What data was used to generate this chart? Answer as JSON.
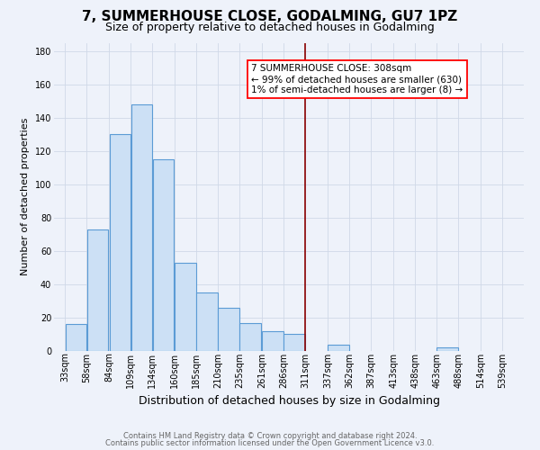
{
  "title": "7, SUMMERHOUSE CLOSE, GODALMING, GU7 1PZ",
  "subtitle": "Size of property relative to detached houses in Godalming",
  "xlabel": "Distribution of detached houses by size in Godalming",
  "ylabel": "Number of detached properties",
  "bar_left_edges": [
    33,
    58,
    84,
    109,
    134,
    160,
    185,
    210,
    235,
    261,
    286,
    311,
    337,
    362,
    387,
    413,
    438,
    463,
    488,
    514
  ],
  "bar_heights": [
    16,
    73,
    130,
    148,
    115,
    53,
    35,
    26,
    17,
    12,
    10,
    0,
    4,
    0,
    0,
    0,
    0,
    2,
    0,
    0
  ],
  "bin_width": 25,
  "bar_facecolor": "#cce0f5",
  "bar_edgecolor": "#5b9bd5",
  "reference_line_x": 311,
  "reference_line_color": "#8b0000",
  "ylim": [
    0,
    185
  ],
  "yticks": [
    0,
    20,
    40,
    60,
    80,
    100,
    120,
    140,
    160,
    180
  ],
  "xtick_labels": [
    "33sqm",
    "58sqm",
    "84sqm",
    "109sqm",
    "134sqm",
    "160sqm",
    "185sqm",
    "210sqm",
    "235sqm",
    "261sqm",
    "286sqm",
    "311sqm",
    "337sqm",
    "362sqm",
    "387sqm",
    "413sqm",
    "438sqm",
    "463sqm",
    "488sqm",
    "514sqm",
    "539sqm"
  ],
  "xtick_positions": [
    33,
    58,
    84,
    109,
    134,
    160,
    185,
    210,
    235,
    261,
    286,
    311,
    337,
    362,
    387,
    413,
    438,
    463,
    488,
    514,
    539
  ],
  "annotation_title": "7 SUMMERHOUSE CLOSE: 308sqm",
  "annotation_line1": "← 99% of detached houses are smaller (630)",
  "annotation_line2": "1% of semi-detached houses are larger (8) →",
  "grid_color": "#d0d8e8",
  "bg_color": "#eef2fa",
  "footer_line1": "Contains HM Land Registry data © Crown copyright and database right 2024.",
  "footer_line2": "Contains public sector information licensed under the Open Government Licence v3.0.",
  "title_fontsize": 11,
  "subtitle_fontsize": 9,
  "xlabel_fontsize": 9,
  "ylabel_fontsize": 8,
  "tick_fontsize": 7,
  "footer_fontsize": 6,
  "annotation_fontsize": 7.5
}
